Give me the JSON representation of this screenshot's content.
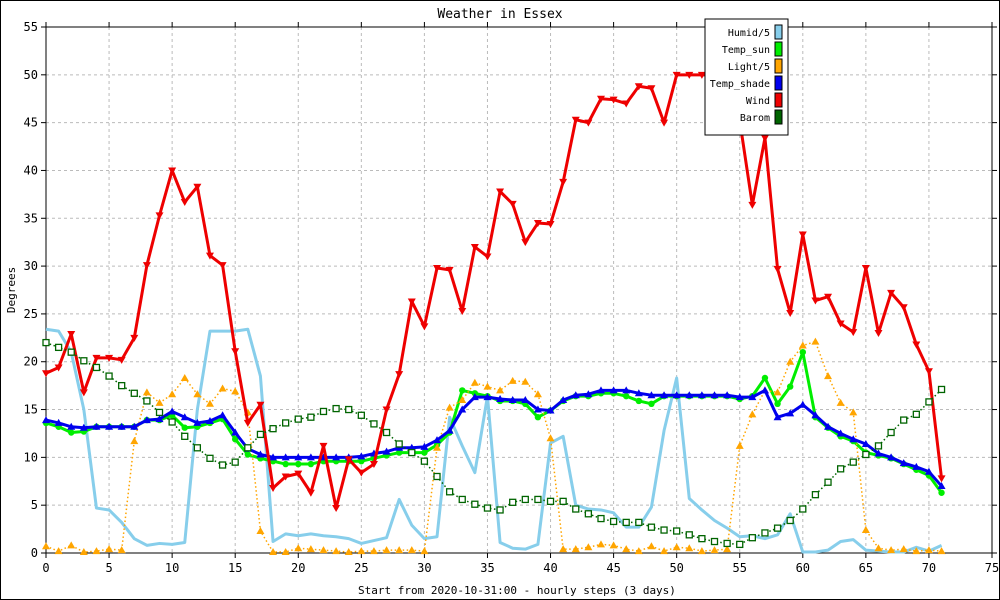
{
  "chart_data": {
    "type": "line",
    "title": "Weather in Essex",
    "xlabel": "Start from 2020-10-31:00 - hourly steps (3 days)",
    "ylabel": "Degrees",
    "xlim": [
      0,
      75
    ],
    "ylim": [
      0,
      55
    ],
    "x_ticks": [
      0,
      5,
      10,
      15,
      20,
      25,
      30,
      35,
      40,
      45,
      50,
      55,
      60,
      65,
      70,
      75
    ],
    "y_ticks": [
      0,
      5,
      10,
      15,
      20,
      25,
      30,
      35,
      40,
      45,
      50,
      55
    ],
    "grid": true,
    "legend_position": "top-right",
    "series": [
      {
        "name": "Humid/5",
        "color": "#87ceeb",
        "marker": "none",
        "style": "solid",
        "values": [
          23.4,
          23.2,
          21,
          15,
          4.7,
          4.5,
          3.2,
          1.5,
          0.8,
          1,
          0.9,
          1.1,
          15,
          23.2,
          23.2,
          23.2,
          23.4,
          18.5,
          1.2,
          2,
          1.8,
          2,
          1.8,
          1.7,
          1.5,
          1,
          1.3,
          1.6,
          5.6,
          2.9,
          1.5,
          1.7,
          14.2,
          11.2,
          8.4,
          16.4,
          1.1,
          0.5,
          0.4,
          0.9,
          11.5,
          12.2,
          5,
          4.6,
          4.5,
          4.2,
          2.7,
          2.7,
          4.8,
          12.8,
          18.3,
          5.7,
          4.5,
          3.4,
          2.6,
          1.7,
          1.8,
          1.5,
          1.9,
          4.1,
          0.1,
          0.1,
          0.3,
          1.2,
          1.4,
          0.3,
          0.2,
          0.1,
          0.1,
          0.6,
          0.2,
          0.8
        ]
      },
      {
        "name": "Temp_sun",
        "color": "#00ee00",
        "marker": "circle",
        "style": "solid",
        "values": [
          13.6,
          13.2,
          12.6,
          12.7,
          13.2,
          13.2,
          13.2,
          13.2,
          13.9,
          13.9,
          14.4,
          13.1,
          13.2,
          13.6,
          14,
          11.9,
          10.3,
          9.9,
          9.6,
          9.3,
          9.3,
          9.3,
          9.6,
          9.6,
          9.6,
          9.6,
          9.9,
          10.2,
          10.5,
          10.5,
          10.5,
          11.3,
          12.6,
          17,
          16.7,
          16.4,
          15.9,
          15.9,
          15.6,
          14.2,
          14.9,
          15.9,
          16.4,
          16.4,
          16.7,
          16.7,
          16.4,
          15.9,
          15.6,
          16.4,
          16.4,
          16.4,
          16.4,
          16.4,
          16.4,
          16.1,
          16.4,
          18.3,
          15.6,
          17.4,
          21,
          14.2,
          13.1,
          12.2,
          11.7,
          10.5,
          10.2,
          9.9,
          9.3,
          8.7,
          8.1,
          6.3
        ]
      },
      {
        "name": "Light/5",
        "color": "#ffa500",
        "marker": "triangle",
        "style": "dotted",
        "values": [
          0.7,
          0.2,
          0.8,
          0.1,
          0.2,
          0.4,
          0.3,
          11.7,
          16.8,
          15.7,
          16.6,
          18.3,
          16.6,
          15.6,
          17.2,
          16.9,
          14.7,
          2.3,
          0.1,
          0.1,
          0.5,
          0.4,
          0.3,
          0.2,
          0.1,
          0.2,
          0.2,
          0.3,
          0.3,
          0.3,
          0.2,
          11,
          15.2,
          16,
          17.8,
          17.4,
          17,
          18,
          17.9,
          16.6,
          12,
          0.4,
          0.4,
          0.6,
          0.9,
          0.8,
          0.4,
          0.2,
          0.7,
          0.2,
          0.6,
          0.5,
          0.2,
          0.3,
          0.4,
          11.2,
          14.5,
          17,
          16.8,
          20,
          21.7,
          22.1,
          18.5,
          15.7,
          14.7,
          2.4,
          0.5,
          0.3,
          0.4,
          0.2,
          0.3,
          0.2
        ]
      },
      {
        "name": "Temp_shade",
        "color": "#0000ee",
        "marker": "triangle",
        "style": "solid",
        "values": [
          13.9,
          13.6,
          13.2,
          13.1,
          13.2,
          13.2,
          13.2,
          13.2,
          13.9,
          14,
          14.8,
          14.2,
          13.6,
          13.8,
          14.4,
          12.6,
          10.9,
          10.3,
          10,
          10,
          10,
          10,
          10,
          10,
          10,
          10.1,
          10.4,
          10.6,
          11,
          11,
          11.1,
          11.8,
          12.8,
          15,
          16.3,
          16.3,
          16.1,
          16,
          16,
          15,
          14.9,
          16,
          16.5,
          16.6,
          17,
          17,
          17,
          16.7,
          16.5,
          16.5,
          16.5,
          16.5,
          16.5,
          16.5,
          16.5,
          16.3,
          16.3,
          17,
          14.2,
          14.6,
          15.5,
          14.4,
          13.2,
          12.5,
          11.9,
          11.4,
          10.4,
          10,
          9.4,
          9,
          8.5,
          7
        ]
      },
      {
        "name": "Wind",
        "color": "#ee0000",
        "marker": "triangle-down",
        "style": "solid",
        "values": [
          18.8,
          19.4,
          22.9,
          16.8,
          20.4,
          20.4,
          20.2,
          22.5,
          30.1,
          35.3,
          40,
          36.7,
          38.3,
          31.1,
          30.1,
          21.1,
          13.6,
          15.5,
          6.8,
          8,
          8.3,
          6.3,
          11.2,
          4.7,
          9.8,
          8.4,
          9.3,
          15,
          18.7,
          26.3,
          23.7,
          29.8,
          29.6,
          25.3,
          32,
          31,
          37.8,
          36.5,
          32.5,
          34.5,
          34.4,
          38.8,
          45.3,
          45,
          47.5,
          47.4,
          47,
          48.8,
          48.6,
          45,
          50,
          50,
          50,
          50,
          49.1,
          45.2,
          36.4,
          43.4,
          29.7,
          25.1,
          33.3,
          26.4,
          26.8,
          24,
          23.1,
          29.8,
          23,
          27.2,
          25.7,
          21.8,
          19,
          7.8
        ]
      },
      {
        "name": "Barom",
        "color": "#006400",
        "marker": "square",
        "style": "dotted",
        "values": [
          22,
          21.5,
          21,
          20.1,
          19.4,
          18.5,
          17.5,
          16.7,
          15.9,
          14.7,
          13.7,
          12.2,
          11,
          9.9,
          9.2,
          9.5,
          11,
          12.4,
          13,
          13.6,
          14,
          14.2,
          14.8,
          15.1,
          15,
          14.4,
          13.5,
          12.6,
          11.4,
          10.5,
          9.6,
          8,
          6.4,
          5.6,
          5.1,
          4.7,
          4.5,
          5.3,
          5.6,
          5.6,
          5.4,
          5.4,
          4.6,
          4.1,
          3.6,
          3.3,
          3.2,
          3.2,
          2.7,
          2.4,
          2.3,
          1.9,
          1.5,
          1.2,
          1,
          0.9,
          1.6,
          2.1,
          2.6,
          3.4,
          4.6,
          6.1,
          7.4,
          8.8,
          9.5,
          10.3,
          11.2,
          12.6,
          13.9,
          14.5,
          15.8,
          17.1
        ]
      }
    ]
  }
}
